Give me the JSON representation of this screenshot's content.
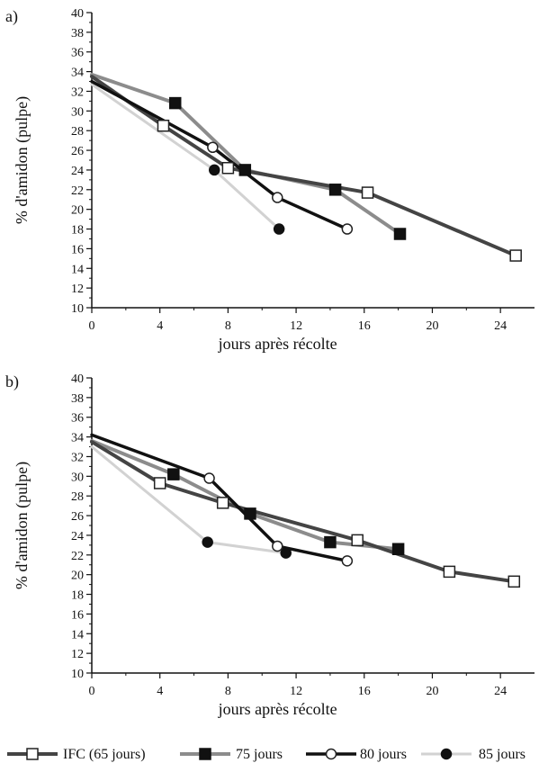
{
  "chart_data": [
    {
      "type": "line",
      "panel_label": "a)",
      "xlabel": "jours après récolte",
      "ylabel": "% d'amidon (pulpe)",
      "xlim": [
        0,
        26
      ],
      "ylim": [
        10,
        40
      ],
      "xticks": [
        0,
        4,
        8,
        12,
        16,
        20,
        24
      ],
      "yticks": [
        10,
        12,
        14,
        16,
        18,
        20,
        22,
        24,
        26,
        28,
        30,
        32,
        34,
        36,
        38,
        40
      ],
      "grid": false,
      "series": [
        {
          "name": "IFC (65 jours)",
          "x": [
            0,
            4.2,
            8.0,
            16.2,
            24.9
          ],
          "y": [
            33.5,
            28.5,
            24.2,
            21.7,
            15.3
          ]
        },
        {
          "name": "75 jours",
          "x": [
            0,
            4.9,
            9.0,
            14.3,
            18.1
          ],
          "y": [
            33.7,
            30.8,
            24.0,
            22.0,
            17.5
          ]
        },
        {
          "name": "80 jours",
          "x": [
            0,
            7.1,
            10.9,
            15.0
          ],
          "y": [
            33.0,
            26.3,
            21.2,
            18.0
          ]
        },
        {
          "name": "85 jours",
          "x": [
            0,
            7.2,
            11.0
          ],
          "y": [
            32.7,
            24.0,
            18.0
          ]
        }
      ]
    },
    {
      "type": "line",
      "panel_label": "b)",
      "xlabel": "jours après récolte",
      "ylabel": "% d'amidon (pulpe)",
      "xlim": [
        0,
        26
      ],
      "ylim": [
        10,
        40
      ],
      "xticks": [
        0,
        4,
        8,
        12,
        16,
        20,
        24
      ],
      "yticks": [
        10,
        12,
        14,
        16,
        18,
        20,
        22,
        24,
        26,
        28,
        30,
        32,
        34,
        36,
        38,
        40
      ],
      "grid": false,
      "series": [
        {
          "name": "IFC (65 jours)",
          "x": [
            0,
            4.0,
            7.7,
            15.6,
            21.0,
            24.8
          ],
          "y": [
            33.5,
            29.3,
            27.3,
            23.5,
            20.3,
            19.3
          ]
        },
        {
          "name": "75 jours",
          "x": [
            0,
            4.8,
            9.3,
            14.0,
            18.0
          ],
          "y": [
            33.6,
            30.2,
            26.2,
            23.3,
            22.6
          ]
        },
        {
          "name": "80 jours",
          "x": [
            0,
            6.9,
            10.9,
            15.0
          ],
          "y": [
            34.2,
            29.8,
            22.9,
            21.4
          ]
        },
        {
          "name": "85 jours",
          "x": [
            0,
            6.8,
            11.4
          ],
          "y": [
            33.0,
            23.3,
            22.2
          ]
        }
      ]
    }
  ],
  "legend": {
    "placement": "bottom",
    "items": [
      "IFC (65 jours)",
      "75 jours",
      "80 jours",
      "85 jours"
    ]
  },
  "styles": {
    "IFC (65 jours)": {
      "line_color": "#444444",
      "line_width": 4,
      "marker": "square-open",
      "marker_fill": "#ffffff",
      "marker_stroke": "#222222"
    },
    "75 jours": {
      "line_color": "#8c8c8c",
      "line_width": 4,
      "marker": "square-filled",
      "marker_fill": "#111111",
      "marker_stroke": "#111111"
    },
    "80 jours": {
      "line_color": "#111111",
      "line_width": 3.5,
      "marker": "circle-open",
      "marker_fill": "#ffffff",
      "marker_stroke": "#222222"
    },
    "85 jours": {
      "line_color": "#d2d2d2",
      "line_width": 3,
      "marker": "circle-filled",
      "marker_fill": "#111111",
      "marker_stroke": "#111111"
    }
  },
  "axis_color": "#111111"
}
